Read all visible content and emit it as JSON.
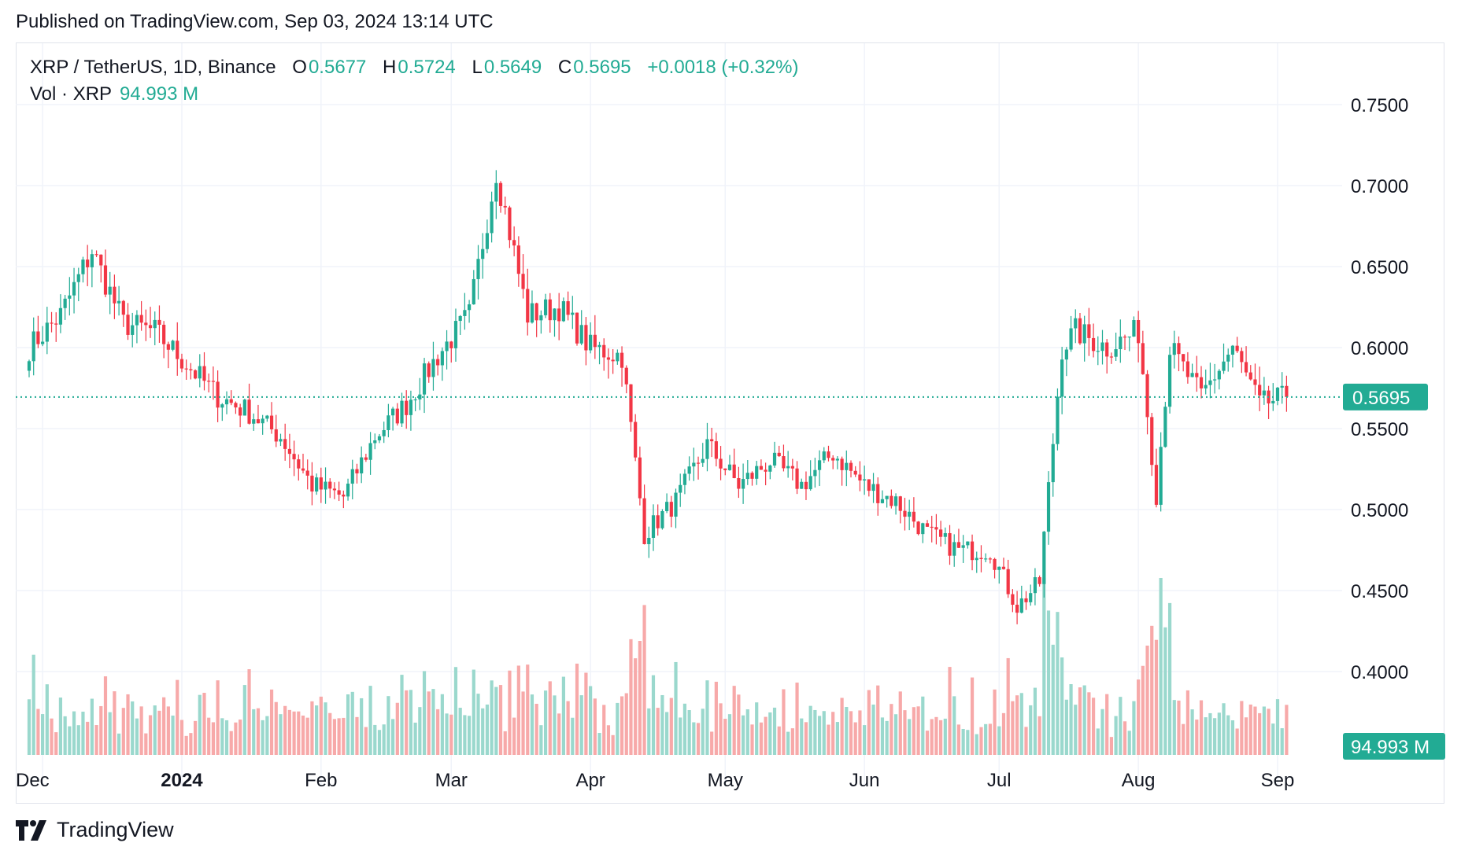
{
  "header": {
    "published": "Published on TradingView.com, Sep 03, 2024 13:14 UTC"
  },
  "legend": {
    "symbol": "XRP / TetherUS, 1D, Binance",
    "o_label": "O",
    "o_value": "0.5677",
    "h_label": "H",
    "h_value": "0.5724",
    "l_label": "L",
    "l_value": "0.5649",
    "c_label": "C",
    "c_value": "0.5695",
    "change": "+0.0018 (+0.32%)",
    "vol_label": "Vol · XRP",
    "vol_value": "94.993 M"
  },
  "badges": {
    "price": "0.5695",
    "volume": "94.993 M"
  },
  "footer": {
    "brand": "TradingView",
    "logo_icon": "tradingview-logo-icon"
  },
  "colors": {
    "up": "#22ab94",
    "down": "#f23645",
    "up_vol": "#9ad8cd",
    "down_vol": "#f7a9a9",
    "grid": "#f0f3fa"
  },
  "chart_data": {
    "type": "candlestick",
    "timeframe": "1D",
    "x_tick_labels": [
      "Dec",
      "2024",
      "Feb",
      "Mar",
      "Apr",
      "May",
      "Jun",
      "Jul",
      "Aug",
      "Sep"
    ],
    "y_tick_labels": [
      "0.7500",
      "0.7000",
      "0.6500",
      "0.6000",
      "0.5500",
      "0.5000",
      "0.4500",
      "0.4000"
    ],
    "ylim": [
      0.395,
      0.76
    ],
    "last_price": 0.5695,
    "grid": true,
    "anchors": {
      "dates": [
        "2023-11-28",
        "2023-12-05",
        "2023-12-12",
        "2023-12-19",
        "2023-12-26",
        "2024-01-02",
        "2024-01-09",
        "2024-01-16",
        "2024-01-23",
        "2024-01-30",
        "2024-02-06",
        "2024-02-13",
        "2024-02-20",
        "2024-02-27",
        "2024-03-05",
        "2024-03-11",
        "2024-03-18",
        "2024-03-25",
        "2024-04-01",
        "2024-04-08",
        "2024-04-13",
        "2024-04-20",
        "2024-04-27",
        "2024-05-04",
        "2024-05-11",
        "2024-05-18",
        "2024-05-25",
        "2024-06-01",
        "2024-06-08",
        "2024-06-15",
        "2024-06-22",
        "2024-06-29",
        "2024-07-05",
        "2024-07-10",
        "2024-07-15",
        "2024-07-18",
        "2024-07-25",
        "2024-08-01",
        "2024-08-05",
        "2024-08-08",
        "2024-08-15",
        "2024-08-22",
        "2024-08-28",
        "2024-09-03"
      ],
      "close": [
        0.6,
        0.62,
        0.66,
        0.615,
        0.61,
        0.59,
        0.57,
        0.56,
        0.545,
        0.515,
        0.508,
        0.545,
        0.565,
        0.595,
        0.62,
        0.71,
        0.62,
        0.625,
        0.6,
        0.595,
        0.485,
        0.505,
        0.54,
        0.515,
        0.53,
        0.515,
        0.535,
        0.515,
        0.505,
        0.485,
        0.475,
        0.475,
        0.44,
        0.455,
        0.6,
        0.61,
        0.6,
        0.61,
        0.51,
        0.6,
        0.57,
        0.6,
        0.565,
        0.5695
      ]
    },
    "volume_note": "daily volume histogram, last bar 94.993 M"
  }
}
